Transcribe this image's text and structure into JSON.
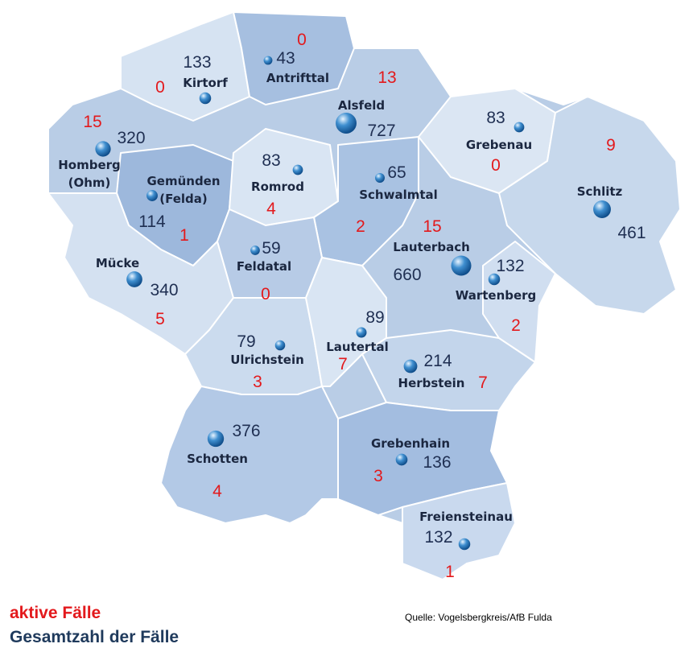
{
  "municipalities": [
    {
      "name": "Kirtorf",
      "total": 133,
      "active": 0
    },
    {
      "name": "Antrifttal",
      "total": 43,
      "active": 0
    },
    {
      "name": "Alsfeld",
      "total": 727,
      "active": 13
    },
    {
      "name": "Grebenau",
      "total": 83,
      "active": 0
    },
    {
      "name": "Schlitz",
      "total": 461,
      "active": 9
    },
    {
      "name": "Homberg (Ohm)",
      "total": 320,
      "active": 15
    },
    {
      "name": "Gemünden (Felda)",
      "total": 114,
      "active": 1
    },
    {
      "name": "Romrod",
      "total": 83,
      "active": 4
    },
    {
      "name": "Schwalmtal",
      "total": 65,
      "active": 2
    },
    {
      "name": "Lauterbach",
      "total": 660,
      "active": 15
    },
    {
      "name": "Wartenberg",
      "total": 132,
      "active": 2
    },
    {
      "name": "Mücke",
      "total": 340,
      "active": 5
    },
    {
      "name": "Feldatal",
      "total": 59,
      "active": 0
    },
    {
      "name": "Ulrichstein",
      "total": 79,
      "active": 3
    },
    {
      "name": "Lautertal",
      "total": 89,
      "active": 7
    },
    {
      "name": "Herbstein",
      "total": 214,
      "active": 7
    },
    {
      "name": "Schotten",
      "total": 376,
      "active": 4
    },
    {
      "name": "Grebenhain",
      "total": 136,
      "active": 3
    },
    {
      "name": "Freiensteinau",
      "total": 132,
      "active": 1
    }
  ],
  "legend": {
    "active": "aktive Fälle",
    "total": "Gesamtzahl der Fälle"
  },
  "source": "Quelle: Vogelsbergkreis/AfB Fulda"
}
